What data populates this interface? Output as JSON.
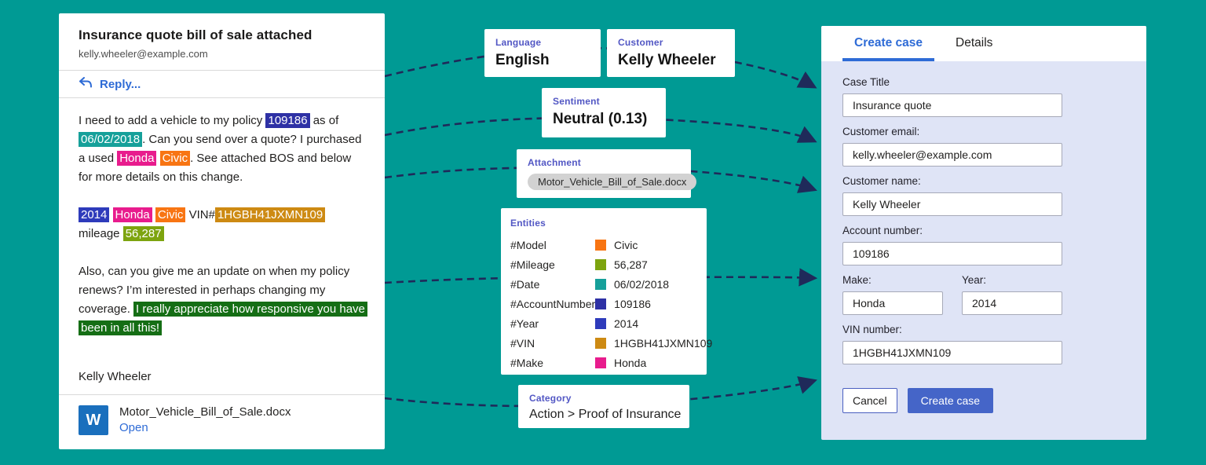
{
  "colors": {
    "background": "#009a94",
    "arrow": "#1f2a5a",
    "accent_blue": "#2e6bd6",
    "button_blue": "#4565c8",
    "card_label": "#5257c4",
    "panel_body_bg": "#dfe4f6",
    "word_icon_blue": "#1a6fbd"
  },
  "entity_colors": {
    "model": "#f87513",
    "mileage": "#7da40f",
    "date": "#16a09a",
    "accountNumber": "#2e31a5",
    "year": "#2e3bbb",
    "vin": "#cd8a13",
    "make": "#e81c8d",
    "sentiment": "#156e15"
  },
  "email": {
    "subject": "Insurance quote bill of sale attached",
    "from": "kelly.wheeler@example.com",
    "reply_label": "Reply...",
    "body": [
      [
        {
          "text": "I need to add a vehicle to my policy "
        },
        {
          "text": "109186",
          "entity": "accountNumber"
        },
        {
          "text": " as of "
        },
        {
          "text": "06/02/2018",
          "entity": "date"
        },
        {
          "text": ". Can you send over a quote? I purchased a used "
        },
        {
          "text": "Honda",
          "entity": "make"
        },
        {
          "text": " "
        },
        {
          "text": "Civic",
          "entity": "model"
        },
        {
          "text": ". See attached BOS and below for more details on this change."
        }
      ],
      [
        {
          "text": "2014",
          "entity": "year"
        },
        {
          "text": " "
        },
        {
          "text": "Honda",
          "entity": "make"
        },
        {
          "text": " "
        },
        {
          "text": "Civic",
          "entity": "model"
        },
        {
          "text": " VIN#"
        },
        {
          "text": "1HGBH41JXMN109",
          "entity": "vin"
        },
        {
          "text": " mileage "
        },
        {
          "text": "56,287",
          "entity": "mileage"
        }
      ],
      [
        {
          "text": "Also, can you give me an update on when my policy renews? I’m interested in perhaps changing my coverage. "
        },
        {
          "text": "I really appreciate how responsive you have been in all this!",
          "entity": "sentiment"
        }
      ]
    ],
    "signature": "Kelly Wheeler",
    "attachment": {
      "icon_letter": "W",
      "filename": "Motor_Vehicle_Bill_of_Sale.docx",
      "open_label": "Open"
    }
  },
  "cards": {
    "language": {
      "label": "Language",
      "value": "English"
    },
    "customer": {
      "label": "Customer",
      "value": "Kelly Wheeler"
    },
    "sentiment": {
      "label": "Sentiment",
      "value": "Neutral (0.13)"
    },
    "attachment": {
      "label": "Attachment",
      "value": "Motor_Vehicle_Bill_of_Sale.docx"
    },
    "entities": {
      "label": "Entities",
      "items": [
        {
          "name": "#Model",
          "entity": "model",
          "value": "Civic"
        },
        {
          "name": "#Mileage",
          "entity": "mileage",
          "value": "56,287"
        },
        {
          "name": "#Date",
          "entity": "date",
          "value": "06/02/2018"
        },
        {
          "name": "#AccountNumber",
          "entity": "accountNumber",
          "value": "109186"
        },
        {
          "name": "#Year",
          "entity": "year",
          "value": "2014"
        },
        {
          "name": "#VIN",
          "entity": "vin",
          "value": "1HGBH41JXMN109"
        },
        {
          "name": "#Make",
          "entity": "make",
          "value": "Honda"
        }
      ]
    },
    "category": {
      "label": "Category",
      "value": "Action > Proof of Insurance"
    }
  },
  "case_panel": {
    "tabs": [
      {
        "label": "Create case",
        "active": true
      },
      {
        "label": "Details",
        "active": false
      }
    ],
    "fields": {
      "case_title": {
        "label": "Case Title",
        "value": "Insurance quote"
      },
      "customer_email": {
        "label": "Customer email:",
        "value": "kelly.wheeler@example.com"
      },
      "customer_name": {
        "label": "Customer name:",
        "value": "Kelly Wheeler"
      },
      "account_number": {
        "label": "Account number:",
        "value": "109186"
      },
      "make": {
        "label": "Make:",
        "value": "Honda"
      },
      "year": {
        "label": "Year:",
        "value": "2014"
      },
      "vin": {
        "label": "VIN number:",
        "value": "1HGBH41JXMN109"
      }
    },
    "buttons": {
      "cancel": "Cancel",
      "create": "Create case"
    }
  }
}
